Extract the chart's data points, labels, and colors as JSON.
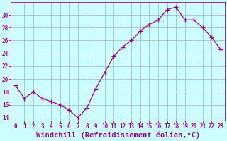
{
  "x": [
    0,
    1,
    2,
    3,
    4,
    5,
    6,
    7,
    8,
    9,
    10,
    11,
    12,
    13,
    14,
    15,
    16,
    17,
    18,
    19,
    20,
    21,
    22,
    23
  ],
  "y": [
    19.0,
    17.0,
    18.0,
    17.0,
    16.5,
    16.0,
    15.2,
    14.0,
    15.5,
    18.5,
    21.0,
    23.5,
    25.0,
    26.0,
    27.5,
    28.5,
    29.2,
    30.8,
    31.2,
    29.2,
    29.2,
    28.0,
    26.5,
    24.6
  ],
  "line_color": "#990099",
  "marker": "+",
  "marker_size": 4,
  "bg_color": "#ccffff",
  "grid_color": "#aabbbb",
  "xlabel": "Windchill (Refroidissement éolien,°C)",
  "xlim": [
    -0.5,
    23.5
  ],
  "ylim": [
    13.5,
    32
  ],
  "yticks": [
    14,
    16,
    18,
    20,
    22,
    24,
    26,
    28,
    30
  ],
  "xticks": [
    0,
    1,
    2,
    3,
    4,
    5,
    6,
    7,
    8,
    9,
    10,
    11,
    12,
    13,
    14,
    15,
    16,
    17,
    18,
    19,
    20,
    21,
    22,
    23
  ],
  "tick_color": "#990099",
  "tick_fontsize": 5.5,
  "xlabel_fontsize": 7.5,
  "label_color": "#990099",
  "lw": 0.9
}
